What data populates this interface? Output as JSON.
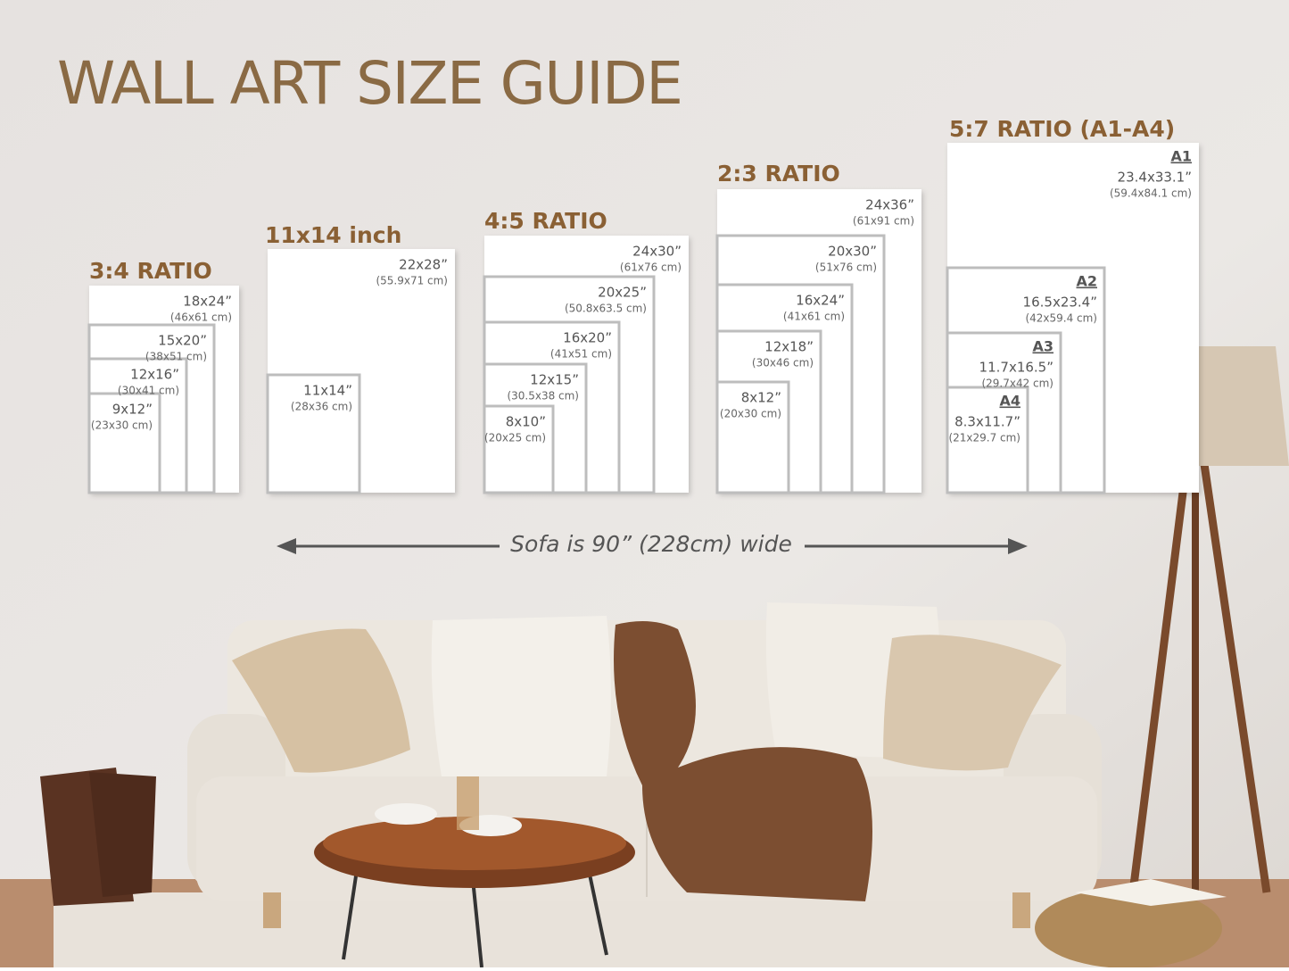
{
  "title": "WALL ART SIZE GUIDE",
  "groups": [
    {
      "title": "3:4 RATIO",
      "sizes": [
        {
          "size": "18x24”",
          "metric": "(46x61 cm)"
        },
        {
          "size": "15x20”",
          "metric": "(38x51 cm)"
        },
        {
          "size": "12x16”",
          "metric": "(30x41 cm)"
        },
        {
          "size": "9x12”",
          "metric": "(23x30 cm)"
        }
      ]
    },
    {
      "title": "11x14 inch",
      "sizes": [
        {
          "size": "22x28”",
          "metric": "(55.9x71 cm)"
        },
        {
          "size": "11x14”",
          "metric": "(28x36 cm)"
        }
      ]
    },
    {
      "title": "4:5 RATIO",
      "sizes": [
        {
          "size": "24x30”",
          "metric": "(61x76 cm)"
        },
        {
          "size": "20x25”",
          "metric": "(50.8x63.5 cm)"
        },
        {
          "size": "16x20”",
          "metric": "(41x51 cm)"
        },
        {
          "size": "12x15”",
          "metric": "(30.5x38 cm)"
        },
        {
          "size": "8x10”",
          "metric": "(20x25 cm)"
        }
      ]
    },
    {
      "title": "2:3 RATIO",
      "sizes": [
        {
          "size": "24x36”",
          "metric": "(61x91 cm)"
        },
        {
          "size": "20x30”",
          "metric": "(51x76 cm)"
        },
        {
          "size": "16x24”",
          "metric": "(41x61 cm)"
        },
        {
          "size": "12x18”",
          "metric": "(30x46 cm)"
        },
        {
          "size": "8x12”",
          "metric": "(20x30 cm)"
        }
      ]
    },
    {
      "title": "5:7 RATIO (A1-A4)",
      "sizes": [
        {
          "name": "A1",
          "size": "23.4x33.1”",
          "metric": "(59.4x84.1 cm)"
        },
        {
          "name": "A2",
          "size": "16.5x23.4”",
          "metric": "(42x59.4 cm)"
        },
        {
          "name": "A3",
          "size": "11.7x16.5”",
          "metric": "(29.7x42 cm)"
        },
        {
          "name": "A4",
          "size": "8.3x11.7”",
          "metric": "(21x29.7 cm)"
        }
      ]
    }
  ],
  "caption": "Sofa is 90” (228cm) wide"
}
